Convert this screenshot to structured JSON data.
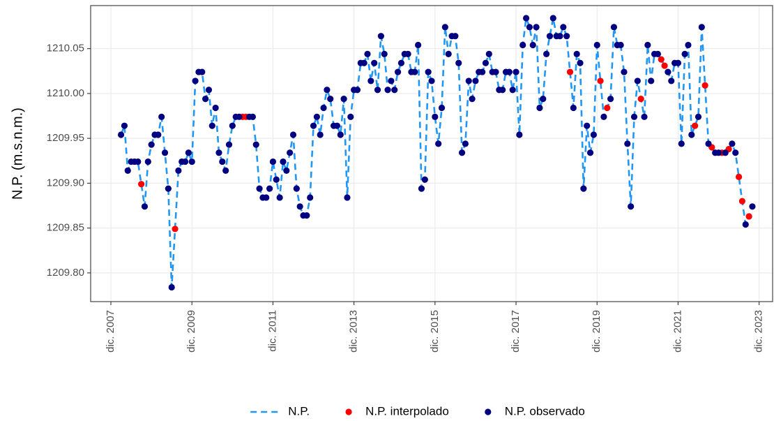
{
  "chart_data": {
    "type": "line",
    "ylabel": "N.P. (m.s.n.m.)",
    "ylim": [
      1209.768,
      1210.098
    ],
    "yticks": [
      {
        "value": 1209.8,
        "label": "1209.80"
      },
      1209.85,
      {
        "value": 1209.9,
        "label": "1209.90"
      },
      1209.95,
      {
        "value": 1210,
        "label": "1210.00"
      },
      1210.05
    ],
    "xlim": [
      "2007-06",
      "2024-04"
    ],
    "xticks": [
      {
        "value": "2007-12",
        "label": "dic. 2007"
      },
      {
        "value": "2009-12",
        "label": "dic. 2009"
      },
      {
        "value": "2011-12",
        "label": "dic. 2011"
      },
      {
        "value": "2013-12",
        "label": "dic. 2013"
      },
      {
        "value": "2015-12",
        "label": "dic. 2015"
      },
      {
        "value": "2017-12",
        "label": "dic. 2017"
      },
      {
        "value": "2019-12",
        "label": "dic. 2019"
      },
      {
        "value": "2021-12",
        "label": "dic. 2021"
      },
      {
        "value": "2023-12",
        "label": "dic. 2023"
      }
    ],
    "grid": true,
    "legend": "bottom",
    "x": [
      "2008-03",
      "2008-04",
      "2008-05",
      "2008-06",
      "2008-07",
      "2008-08",
      "2008-09",
      "2008-10",
      "2008-11",
      "2008-12",
      "2009-01",
      "2009-02",
      "2009-03",
      "2009-04",
      "2009-05",
      "2009-06",
      "2009-07",
      "2009-08",
      "2009-09",
      "2009-10",
      "2009-11",
      "2009-12",
      "2010-01",
      "2010-02",
      "2010-03",
      "2010-04",
      "2010-05",
      "2010-06",
      "2010-07",
      "2010-08",
      "2010-09",
      "2010-10",
      "2010-11",
      "2010-12",
      "2011-01",
      "2011-02",
      "2011-03",
      "2011-04",
      "2011-05",
      "2011-06",
      "2011-07",
      "2011-08",
      "2011-09",
      "2011-10",
      "2011-11",
      "2011-12",
      "2012-01",
      "2012-02",
      "2012-03",
      "2012-04",
      "2012-05",
      "2012-06",
      "2012-07",
      "2012-08",
      "2012-09",
      "2012-10",
      "2012-11",
      "2012-12",
      "2013-01",
      "2013-02",
      "2013-03",
      "2013-04",
      "2013-05",
      "2013-06",
      "2013-07",
      "2013-08",
      "2013-09",
      "2013-10",
      "2013-11",
      "2013-12",
      "2014-01",
      "2014-02",
      "2014-03",
      "2014-04",
      "2014-05",
      "2014-06",
      "2014-07",
      "2014-08",
      "2014-09",
      "2014-10",
      "2014-11",
      "2014-12",
      "2015-01",
      "2015-02",
      "2015-03",
      "2015-04",
      "2015-05",
      "2015-06",
      "2015-07",
      "2015-08",
      "2015-09",
      "2015-10",
      "2015-11",
      "2015-12",
      "2016-01",
      "2016-02",
      "2016-03",
      "2016-04",
      "2016-05",
      "2016-06",
      "2016-07",
      "2016-08",
      "2016-09",
      "2016-10",
      "2016-11",
      "2016-12",
      "2017-01",
      "2017-02",
      "2017-03",
      "2017-04",
      "2017-05",
      "2017-06",
      "2017-07",
      "2017-08",
      "2017-09",
      "2017-10",
      "2017-11",
      "2017-12",
      "2018-01",
      "2018-02",
      "2018-03",
      "2018-04",
      "2018-05",
      "2018-06",
      "2018-07",
      "2018-08",
      "2018-09",
      "2018-10",
      "2018-11",
      "2018-12",
      "2019-01",
      "2019-02",
      "2019-03",
      "2019-04",
      "2019-05",
      "2019-06",
      "2019-07",
      "2019-08",
      "2019-09",
      "2019-10",
      "2019-11",
      "2019-12",
      "2020-01",
      "2020-02",
      "2020-03",
      "2020-04",
      "2020-05",
      "2020-06",
      "2020-07",
      "2020-08",
      "2020-09",
      "2020-10",
      "2020-11",
      "2020-12",
      "2021-01",
      "2021-02",
      "2021-03",
      "2021-04",
      "2021-05",
      "2021-06",
      "2021-07",
      "2021-08",
      "2021-09",
      "2021-10",
      "2021-11",
      "2021-12",
      "2022-01",
      "2022-02",
      "2022-03",
      "2022-04",
      "2022-05",
      "2022-06",
      "2022-07",
      "2022-08",
      "2022-09",
      "2022-10",
      "2022-11",
      "2022-12",
      "2023-01",
      "2023-02",
      "2023-03",
      "2023-04",
      "2023-05",
      "2023-06",
      "2023-07",
      "2023-08",
      "2023-09",
      "2023-10"
    ],
    "series": [
      {
        "name": "N.P.",
        "kind": "line",
        "color": "#2196f3",
        "values": [
          1209.954,
          1209.964,
          1209.914,
          1209.924,
          1209.924,
          1209.924,
          1209.899,
          1209.874,
          1209.924,
          1209.943,
          1209.954,
          1209.954,
          1209.974,
          1209.934,
          1209.894,
          1209.784,
          1209.849,
          1209.914,
          1209.924,
          1209.924,
          1209.934,
          1209.924,
          1210.014,
          1210.024,
          1210.024,
          1209.994,
          1210.004,
          1209.964,
          1209.984,
          1209.934,
          1209.924,
          1209.914,
          1209.943,
          1209.964,
          1209.974,
          1209.974,
          1209.974,
          1209.974,
          1209.974,
          1209.974,
          1209.943,
          1209.894,
          1209.884,
          1209.884,
          1209.894,
          1209.924,
          1209.904,
          1209.884,
          1209.924,
          1209.914,
          1209.934,
          1209.954,
          1209.894,
          1209.874,
          1209.864,
          1209.864,
          1209.884,
          1209.964,
          1209.974,
          1209.954,
          1209.984,
          1210.004,
          1209.994,
          1209.964,
          1209.964,
          1209.954,
          1209.994,
          1209.884,
          1209.974,
          1210.004,
          1210.004,
          1210.034,
          1210.034,
          1210.044,
          1210.014,
          1210.034,
          1210.004,
          1210.064,
          1210.044,
          1210.004,
          1210.014,
          1210.004,
          1210.024,
          1210.034,
          1210.044,
          1210.044,
          1210.024,
          1210.024,
          1210.054,
          1209.894,
          1209.904,
          1210.024,
          1210.014,
          1209.974,
          1209.944,
          1209.984,
          1210.074,
          1210.044,
          1210.064,
          1210.064,
          1210.034,
          1209.934,
          1209.944,
          1210.014,
          1209.994,
          1210.014,
          1210.024,
          1210.024,
          1210.034,
          1210.044,
          1210.024,
          1210.024,
          1210.004,
          1210.004,
          1210.024,
          1210.024,
          1210.004,
          1210.024,
          1209.954,
          1210.054,
          1210.084,
          1210.074,
          1210.054,
          1210.074,
          1209.984,
          1209.994,
          1210.044,
          1210.064,
          1210.084,
          1210.064,
          1210.064,
          1210.074,
          1210.064,
          1210.024,
          1209.984,
          1210.044,
          1210.034,
          1209.894,
          1209.964,
          1209.934,
          1209.954,
          1210.054,
          1210.014,
          1209.974,
          1209.984,
          1209.994,
          1210.074,
          1210.054,
          1210.054,
          1210.024,
          1209.944,
          1209.874,
          1209.974,
          1210.014,
          1209.994,
          1209.974,
          1210.054,
          1210.014,
          1210.044,
          1210.044,
          1210.038,
          1210.031,
          1210.024,
          1210.014,
          1210.034,
          1210.034,
          1209.944,
          1210.044,
          1210.054,
          1209.954,
          1209.964,
          1209.974,
          1210.074,
          1210.009,
          1209.944,
          1209.94,
          1209.934,
          1209.934,
          1209.934,
          1209.934,
          1209.938,
          1209.944,
          1209.934,
          1209.907,
          1209.88,
          1209.854,
          1209.863,
          1209.874
        ]
      },
      {
        "name": "N.P. interpolado",
        "kind": "point",
        "color": "#ff0000",
        "values": [
          null,
          null,
          null,
          null,
          null,
          null,
          1209.899,
          null,
          null,
          null,
          null,
          null,
          null,
          null,
          null,
          null,
          1209.849,
          null,
          null,
          null,
          null,
          null,
          null,
          null,
          null,
          null,
          null,
          null,
          null,
          null,
          null,
          null,
          null,
          null,
          null,
          null,
          1209.974,
          1209.974,
          null,
          null,
          null,
          null,
          null,
          null,
          null,
          null,
          null,
          null,
          null,
          null,
          null,
          null,
          null,
          null,
          null,
          null,
          null,
          null,
          null,
          null,
          null,
          null,
          null,
          null,
          null,
          null,
          null,
          null,
          null,
          null,
          null,
          null,
          null,
          null,
          null,
          null,
          null,
          null,
          null,
          null,
          null,
          null,
          null,
          null,
          null,
          null,
          null,
          null,
          null,
          null,
          null,
          null,
          null,
          null,
          null,
          null,
          null,
          null,
          null,
          null,
          null,
          null,
          null,
          null,
          null,
          null,
          null,
          null,
          null,
          null,
          null,
          null,
          null,
          null,
          null,
          null,
          null,
          null,
          null,
          null,
          null,
          null,
          null,
          null,
          null,
          null,
          null,
          null,
          null,
          null,
          null,
          null,
          null,
          1210.024,
          null,
          null,
          null,
          null,
          null,
          null,
          null,
          null,
          1210.014,
          null,
          1209.984,
          null,
          null,
          null,
          null,
          null,
          null,
          null,
          null,
          null,
          1209.994,
          null,
          null,
          null,
          null,
          null,
          1210.038,
          1210.031,
          null,
          null,
          null,
          null,
          null,
          null,
          null,
          null,
          1209.964,
          null,
          null,
          1210.009,
          null,
          1209.94,
          null,
          null,
          1209.934,
          null,
          1209.938,
          null,
          null,
          1209.907,
          1209.88,
          null,
          1209.863,
          null
        ]
      },
      {
        "name": "N.P. observado",
        "kind": "point",
        "color": "#000080",
        "values": [
          1209.954,
          1209.964,
          1209.914,
          1209.924,
          1209.924,
          1209.924,
          null,
          1209.874,
          1209.924,
          1209.943,
          1209.954,
          1209.954,
          1209.974,
          1209.934,
          1209.894,
          1209.784,
          null,
          1209.914,
          1209.924,
          1209.924,
          1209.934,
          1209.924,
          1210.014,
          1210.024,
          1210.024,
          1209.994,
          1210.004,
          1209.964,
          1209.984,
          1209.934,
          1209.924,
          1209.914,
          1209.943,
          1209.964,
          1209.974,
          1209.974,
          null,
          null,
          1209.974,
          1209.974,
          1209.943,
          1209.894,
          1209.884,
          1209.884,
          1209.894,
          1209.924,
          1209.904,
          1209.884,
          1209.924,
          1209.914,
          1209.934,
          1209.954,
          1209.894,
          1209.874,
          1209.864,
          1209.864,
          1209.884,
          1209.964,
          1209.974,
          1209.954,
          1209.984,
          1210.004,
          1209.994,
          1209.964,
          1209.964,
          1209.954,
          1209.994,
          1209.884,
          1209.974,
          1210.004,
          1210.004,
          1210.034,
          1210.034,
          1210.044,
          1210.014,
          1210.034,
          1210.004,
          1210.064,
          1210.044,
          1210.004,
          1210.014,
          1210.004,
          1210.024,
          1210.034,
          1210.044,
          1210.044,
          1210.024,
          1210.024,
          1210.054,
          1209.894,
          1209.904,
          1210.024,
          1210.014,
          1209.974,
          1209.944,
          1209.984,
          1210.074,
          1210.044,
          1210.064,
          1210.064,
          1210.034,
          1209.934,
          1209.944,
          1210.014,
          1209.994,
          1210.014,
          1210.024,
          1210.024,
          1210.034,
          1210.044,
          1210.024,
          1210.024,
          1210.004,
          1210.004,
          1210.024,
          1210.024,
          1210.004,
          1210.024,
          1209.954,
          1210.054,
          1210.084,
          1210.074,
          1210.054,
          1210.074,
          1209.984,
          1209.994,
          1210.044,
          1210.064,
          1210.084,
          1210.064,
          1210.064,
          1210.074,
          1210.064,
          null,
          1209.984,
          1210.044,
          1210.034,
          1209.894,
          1209.964,
          1209.934,
          1209.954,
          1210.054,
          null,
          1209.974,
          null,
          1209.994,
          1210.074,
          1210.054,
          1210.054,
          1210.024,
          1209.944,
          1209.874,
          1209.974,
          1210.014,
          null,
          1209.974,
          1210.054,
          1210.014,
          1210.044,
          1210.044,
          null,
          null,
          1210.024,
          1210.014,
          1210.034,
          1210.034,
          1209.944,
          1210.044,
          1210.054,
          1209.954,
          null,
          1209.974,
          1210.074,
          null,
          1209.944,
          null,
          1209.934,
          1209.934,
          null,
          1209.934,
          null,
          1209.944,
          1209.934,
          null,
          null,
          1209.854,
          null,
          1209.874
        ]
      }
    ]
  }
}
